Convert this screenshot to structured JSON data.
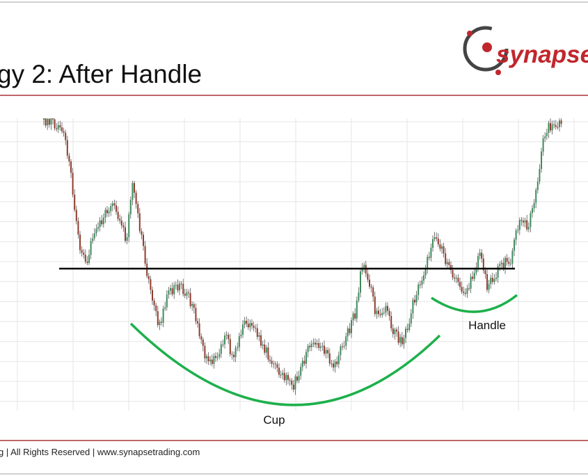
{
  "header": {
    "title": "gy 2: After Handle",
    "logo": "synapset"
  },
  "annotations": {
    "cup": "Cup",
    "handle": "Handle"
  },
  "footer": {
    "text": "g | All Rights Reserved | www.synapsetrading.com"
  }
}
